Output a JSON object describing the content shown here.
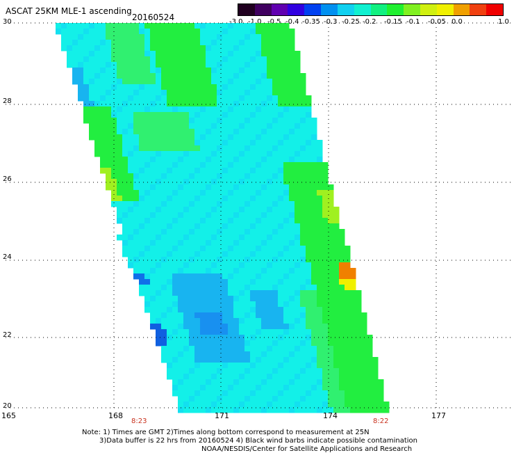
{
  "header": {
    "title": "ASCAT 25KM MLE-1 ascending",
    "date": "20160524"
  },
  "colorbar": {
    "labels": [
      "-3.0",
      "-1.0",
      "-0.5",
      "-0.4",
      "-0.35",
      "-0.3",
      "-0.25",
      "-0.2",
      "-0.15",
      "-0.1",
      "-0.05",
      "0.0",
      "1.0"
    ],
    "colors": [
      "#2a0030",
      "#5a00a0",
      "#2020e0",
      "#0a64f0",
      "#10a0f0",
      "#18d8f0",
      "#10f0c0",
      "#10e870",
      "#20e830",
      "#90f020",
      "#f0f000",
      "#f08000",
      "#f01010"
    ]
  },
  "map": {
    "lon_ticks": [
      "165",
      "168",
      "171",
      "174",
      "177"
    ],
    "lat_ticks": [
      "20",
      "22",
      "24",
      "26",
      "28",
      "30"
    ],
    "times": [
      "8:23",
      "8:22"
    ],
    "colors": {
      "cyan": "#13f0e8",
      "aqua": "#13e0f0",
      "blue": "#18b4f0",
      "deep_blue": "#1070e8",
      "green": "#22ee40",
      "light_green": "#30f070",
      "yellow_green": "#a0f020",
      "yellow": "#f0f000",
      "orange": "#f08000",
      "grid": "#000000"
    }
  },
  "notes": {
    "line1": "Note: 1) Times are GMT 2)Times along bottom correspond to measurement at 25N",
    "line2": "3)Data buffer is 22 hrs from 20160524 4) Black wind barbs indicate possible contamination",
    "line3": "NOAA/NESDIS/Center for Satellite Applications and Research"
  }
}
